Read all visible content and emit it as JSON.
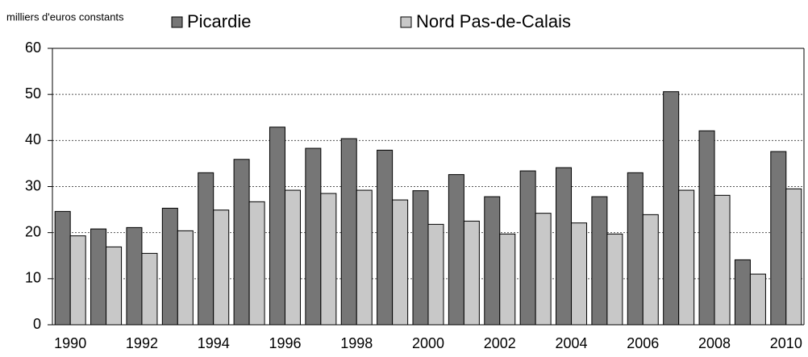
{
  "chart_data": {
    "type": "bar",
    "y_label": "milliers d'euros constants",
    "categories": [
      "1990",
      null,
      "1992",
      null,
      "1994",
      null,
      "1996",
      null,
      "1998",
      null,
      "2000",
      null,
      "2002",
      null,
      "2004",
      null,
      "2006",
      null,
      "2008",
      null,
      "2010"
    ],
    "series": [
      {
        "name": "Picardie",
        "color": "#767676",
        "values": [
          24.6,
          20.8,
          21.1,
          25.3,
          33,
          35.9,
          42.9,
          38.3,
          40.4,
          37.9,
          29.1,
          32.6,
          27.8,
          33.4,
          34.1,
          27.8,
          33,
          50.6,
          42.1,
          14.1,
          37.6
        ]
      },
      {
        "name": "Nord Pas-de-Calais",
        "color": "#c8c8c8",
        "values": [
          19.3,
          16.9,
          15.5,
          20.4,
          24.9,
          26.7,
          29.2,
          28.5,
          29.2,
          27.1,
          21.8,
          22.5,
          19.7,
          24.2,
          22.1,
          19.7,
          23.9,
          29.2,
          28.1,
          11,
          29.5
        ]
      }
    ],
    "ylim": [
      0,
      60
    ],
    "yticks": [
      0,
      10,
      20,
      30,
      40,
      50,
      60
    ],
    "grid": true,
    "legend": "top"
  }
}
